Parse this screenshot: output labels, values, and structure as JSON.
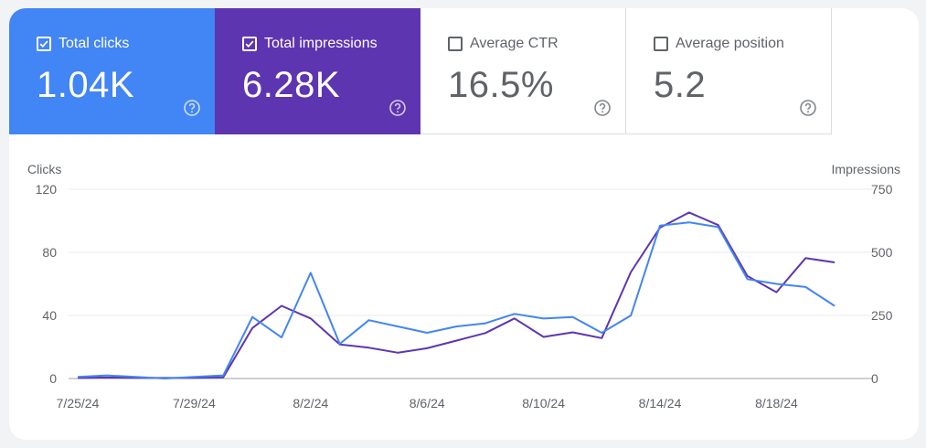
{
  "metrics": {
    "clicks": {
      "label": "Total clicks",
      "value": "1.04K",
      "checked": true,
      "color": "#4285f4"
    },
    "impressions": {
      "label": "Total impressions",
      "value": "6.28K",
      "checked": true,
      "color": "#5e35b1"
    },
    "ctr": {
      "label": "Average CTR",
      "value": "16.5%",
      "checked": false
    },
    "position": {
      "label": "Average position",
      "value": "5.2",
      "checked": false
    }
  },
  "icons": {
    "checkbox": "checkbox-icon",
    "help": "help-icon"
  },
  "chart_data": {
    "type": "line",
    "ylabel_left": "Clicks",
    "ylabel_right": "Impressions",
    "ylim_left": [
      0,
      120
    ],
    "ylim_right": [
      0,
      750
    ],
    "yticks_left": [
      "0",
      "40",
      "80",
      "120"
    ],
    "yticks_right": [
      "0",
      "250",
      "500",
      "750"
    ],
    "x": [
      "7/25/24",
      "7/26/24",
      "7/27/24",
      "7/28/24",
      "7/29/24",
      "7/30/24",
      "7/31/24",
      "8/1/24",
      "8/2/24",
      "8/3/24",
      "8/4/24",
      "8/5/24",
      "8/6/24",
      "8/7/24",
      "8/8/24",
      "8/9/24",
      "8/10/24",
      "8/11/24",
      "8/12/24",
      "8/13/24",
      "8/14/24",
      "8/15/24",
      "8/16/24",
      "8/17/24",
      "8/18/24",
      "8/19/24",
      "8/20/24",
      "8/21/24"
    ],
    "xtick_labels": [
      "7/25/24",
      "7/29/24",
      "8/2/24",
      "8/6/24",
      "8/10/24",
      "8/14/24",
      "8/18/24"
    ],
    "grid": true,
    "series": [
      {
        "name": "Clicks",
        "axis": "left",
        "color": "#4285f4",
        "values": [
          1,
          2,
          1,
          0,
          1,
          2,
          39,
          26,
          67,
          22,
          37,
          33,
          29,
          33,
          35,
          41,
          38,
          39,
          29,
          40,
          97,
          99,
          96,
          63,
          60,
          58,
          46,
          null
        ]
      },
      {
        "name": "Impressions",
        "axis": "right",
        "color": "#5e35b1",
        "values": [
          2,
          4,
          3,
          2,
          3,
          5,
          200,
          288,
          238,
          135,
          122,
          102,
          120,
          150,
          180,
          238,
          165,
          183,
          160,
          422,
          598,
          658,
          608,
          406,
          342,
          477,
          460,
          null
        ]
      }
    ]
  }
}
